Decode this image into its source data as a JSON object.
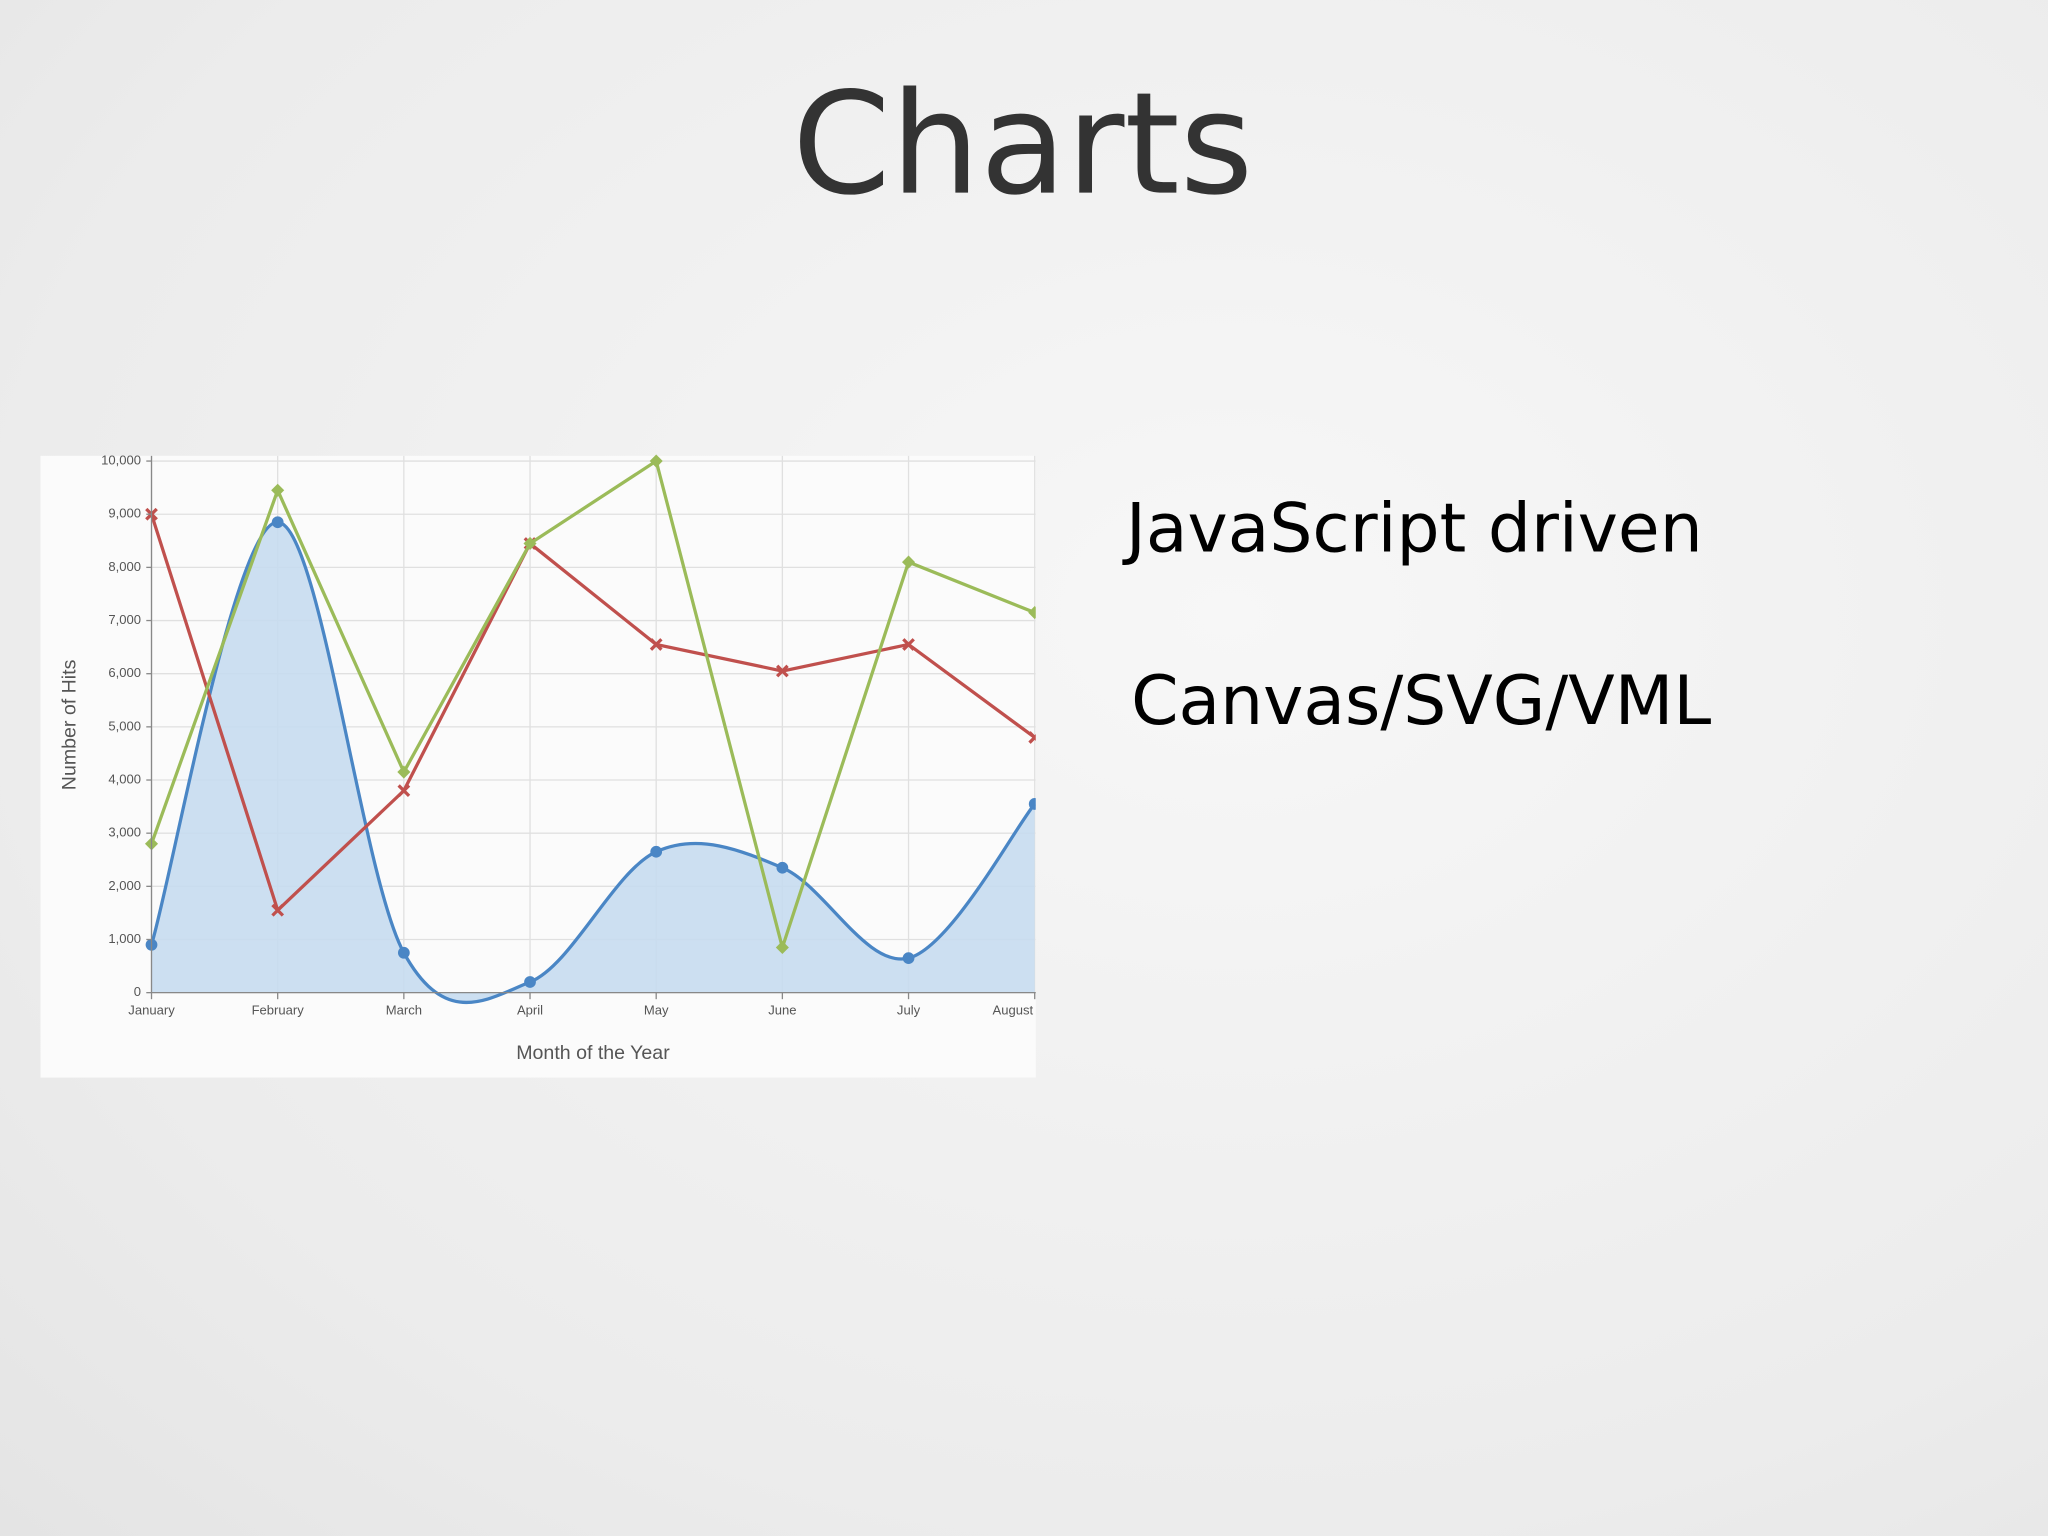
{
  "title": "Charts",
  "bullets": [
    "JavaScript driven",
    "Canvas/SVG/VML"
  ],
  "chart_data": {
    "type": "line",
    "x_label": "Month of the Year",
    "y_label": "Number of Hits",
    "categories": [
      "January",
      "February",
      "March",
      "April",
      "May",
      "June",
      "July",
      "August"
    ],
    "series": [
      {
        "color": "#4a86c5",
        "style": "area-spline",
        "marker": "circle",
        "values": [
          900,
          8850,
          750,
          200,
          2650,
          2350,
          650,
          3550
        ]
      },
      {
        "color": "#c0504d",
        "style": "line",
        "marker": "x",
        "values": [
          9000,
          1550,
          3800,
          8450,
          6550,
          6050,
          6550,
          4800
        ]
      },
      {
        "color": "#9bbb59",
        "style": "line",
        "marker": "diamond",
        "values": [
          2800,
          9450,
          4150,
          8450,
          10000,
          850,
          8100,
          7150
        ]
      }
    ],
    "ylim": [
      0,
      10000
    ],
    "yticks": [
      0,
      {
        "value": 1000,
        "label": "1,000"
      },
      {
        "value": 2000,
        "label": "2,000"
      },
      {
        "value": 3000,
        "label": "3,000"
      },
      {
        "value": 4000,
        "label": "4,000"
      },
      {
        "value": 5000,
        "label": "5,000"
      },
      {
        "value": 6000,
        "label": "6,000"
      },
      {
        "value": 7000,
        "label": "7,000"
      },
      {
        "value": 8000,
        "label": "8,000"
      },
      {
        "value": 9000,
        "label": "9,000"
      },
      {
        "value": 10000,
        "label": "10,000"
      }
    ],
    "grid": true
  }
}
